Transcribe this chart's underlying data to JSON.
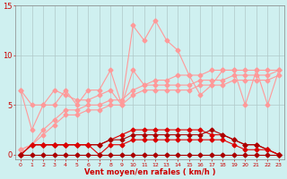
{
  "x": [
    0,
    1,
    2,
    3,
    4,
    5,
    6,
    7,
    8,
    9,
    10,
    11,
    12,
    13,
    14,
    15,
    16,
    17,
    18,
    19,
    20,
    21,
    22,
    23
  ],
  "rafales": [
    6.5,
    2.5,
    5.0,
    5.0,
    6.5,
    5.0,
    6.5,
    6.5,
    8.5,
    5.0,
    13.0,
    11.5,
    13.5,
    11.5,
    10.5,
    8.0,
    6.0,
    7.0,
    8.5,
    8.5,
    5.0,
    8.5,
    5.0,
    8.5
  ],
  "vent_max_band": [
    6.5,
    5.0,
    5.0,
    6.5,
    6.0,
    5.5,
    5.5,
    6.0,
    6.5,
    5.0,
    8.5,
    7.0,
    7.5,
    7.5,
    8.0,
    8.0,
    8.0,
    8.5,
    8.5,
    8.5,
    8.5,
    8.5,
    8.5,
    8.5
  ],
  "vent_moyen_upper": [
    0.5,
    1.0,
    2.5,
    3.5,
    4.5,
    4.5,
    5.0,
    5.0,
    5.5,
    5.5,
    6.5,
    7.0,
    7.0,
    7.0,
    7.0,
    7.0,
    7.5,
    7.5,
    7.5,
    8.0,
    8.0,
    8.0,
    8.0,
    8.5
  ],
  "vent_moyen_lower": [
    0.5,
    1.0,
    2.0,
    3.0,
    4.0,
    4.0,
    4.5,
    4.5,
    5.0,
    5.0,
    6.0,
    6.5,
    6.5,
    6.5,
    6.5,
    6.5,
    7.0,
    7.0,
    7.0,
    7.5,
    7.5,
    7.5,
    7.5,
    8.0
  ],
  "moyen_dark_top": [
    0.0,
    1.0,
    1.0,
    1.0,
    1.0,
    1.0,
    1.0,
    1.0,
    1.5,
    2.0,
    2.5,
    2.5,
    2.5,
    2.5,
    2.5,
    2.5,
    2.5,
    2.0,
    2.0,
    1.5,
    1.0,
    1.0,
    0.5,
    0.0
  ],
  "moyen_dark_mid": [
    0.0,
    1.0,
    1.0,
    1.0,
    1.0,
    1.0,
    1.0,
    1.0,
    1.5,
    1.5,
    2.0,
    2.0,
    2.0,
    2.0,
    2.0,
    2.0,
    2.0,
    2.5,
    2.0,
    1.5,
    1.0,
    1.0,
    0.5,
    0.0
  ],
  "moyen_dark_lower1": [
    0.0,
    1.0,
    1.0,
    1.0,
    1.0,
    1.0,
    1.0,
    0.0,
    1.0,
    1.0,
    1.5,
    1.5,
    1.5,
    1.5,
    1.5,
    1.5,
    1.5,
    1.5,
    1.5,
    1.0,
    0.5,
    0.5,
    0.5,
    0.0
  ],
  "moyen_dark_lower2": [
    0.0,
    0.0,
    0.0,
    0.0,
    0.0,
    0.0,
    0.0,
    0.0,
    0.0,
    0.0,
    0.0,
    0.0,
    0.0,
    0.0,
    0.0,
    0.0,
    0.0,
    0.0,
    0.0,
    0.0,
    0.0,
    0.0,
    0.0,
    0.0
  ],
  "bg_color": "#cff0f0",
  "grid_color": "#b0c8c8",
  "line_color_light": "#ff9999",
  "line_color_dark": "#dd0000",
  "line_color_darkest": "#aa0000",
  "ylabel_ticks": [
    0,
    5,
    10,
    15
  ],
  "xlabel": "Vent moyen/en rafales ( km/h )",
  "ylim": [
    -0.5,
    15
  ],
  "xlim": [
    -0.5,
    23.5
  ]
}
